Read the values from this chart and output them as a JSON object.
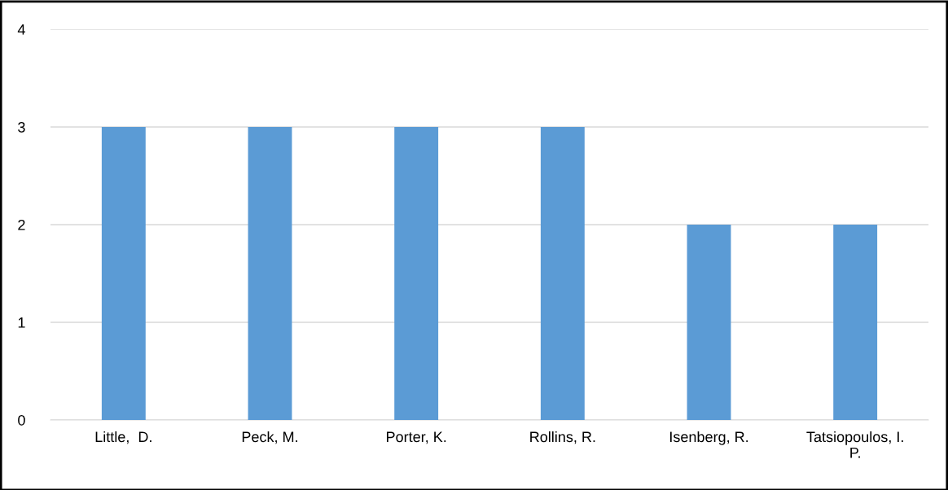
{
  "chart_data": {
    "type": "bar",
    "categories": [
      "Little,  D.",
      "Peck, M.",
      "Porter, K.",
      "Rollins, R.",
      "Isenberg, R.",
      "Tatsiopoulos, I.\nP."
    ],
    "values": [
      3,
      3,
      3,
      3,
      2,
      2
    ],
    "color": "#5b9bd5",
    "ylim": [
      0,
      4
    ],
    "yticks": [
      0,
      1,
      2,
      3,
      4
    ],
    "grid": "y"
  }
}
